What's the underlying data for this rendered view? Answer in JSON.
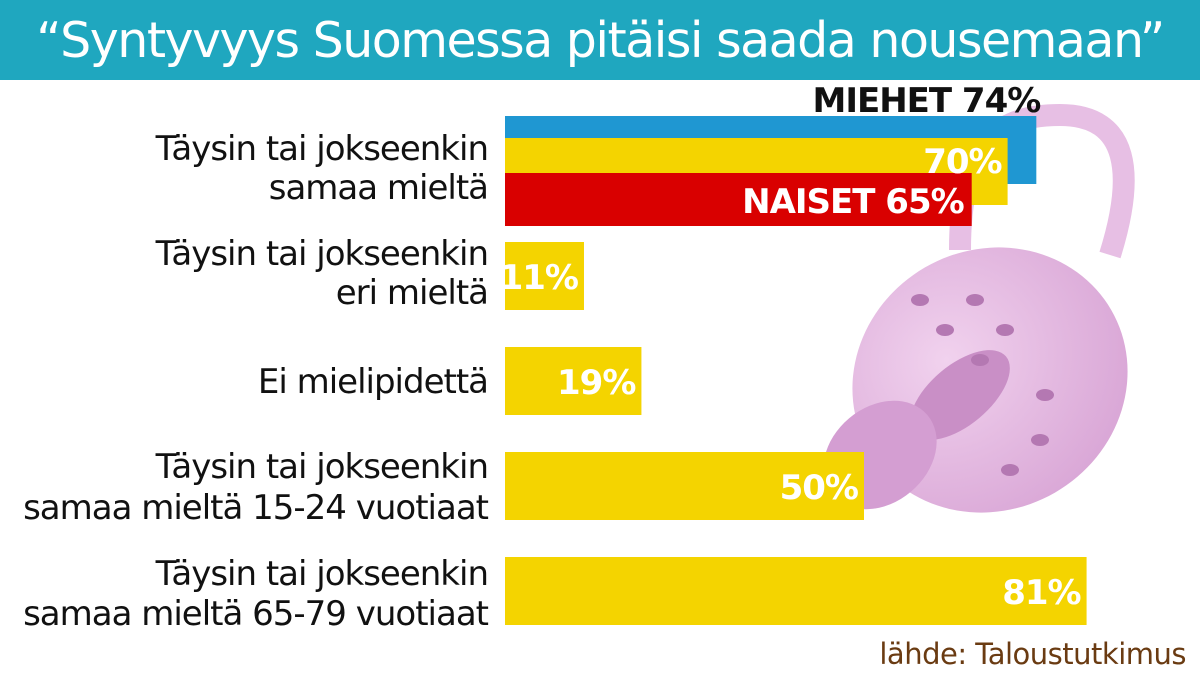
{
  "title": "“Syntyvyys Suomessa pitäisi saada nousemaan”",
  "source": "lähde: Taloustutkimus",
  "colors": {
    "header": "#1fa7bf",
    "total": "#f4d400",
    "men": "#1f97d2",
    "women": "#d90000",
    "label_text": "#111111",
    "value_text": "#ffffff",
    "source_text": "#6a3b12",
    "decoration": "#d9a6d6"
  },
  "decoration": {
    "icon": "pacifier-icon"
  },
  "chart_data": {
    "type": "bar",
    "orientation": "horizontal",
    "unit": "%",
    "xlim": [
      0,
      100
    ],
    "grid": false,
    "legend": "none",
    "categories": [
      [
        "Täysin tai jokseenkin",
        "samaa mieltä"
      ],
      [
        "Täysin tai jokseenkin",
        "eri mieltä"
      ],
      [
        "Ei mielipidettä"
      ],
      [
        "Täysin tai jokseenkin",
        "samaa mieltä 15-24 vuotiaat"
      ],
      [
        "Täysin tai jokseenkin",
        "samaa mieltä 65-79 vuotiaat"
      ]
    ],
    "values": [
      70,
      11,
      19,
      50,
      81
    ],
    "value_labels": [
      "70%",
      "11%",
      "19%",
      "50%",
      "81%"
    ],
    "breakdown": {
      "category_index": 0,
      "series": [
        {
          "name": "MIEHET",
          "value": 74,
          "label": "MIEHET 74%"
        },
        {
          "name": "NAISET",
          "value": 65,
          "label": "NAISET 65%"
        }
      ]
    }
  }
}
